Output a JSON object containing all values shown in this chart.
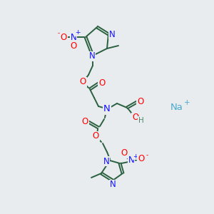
{
  "bg_color": "#e8ecee",
  "bond_color": "#2a6040",
  "bond_lw": 1.4,
  "atom_colors": {
    "N": "#1414ff",
    "O": "#ff0000",
    "C": "#2a6040",
    "H": "#4a8a6a",
    "Na": "#4aaacc",
    "plus": "#1414ff",
    "minus": "#ff0000"
  },
  "fs": 8.5,
  "sfs": 6.5,
  "na_fs": 9.5
}
